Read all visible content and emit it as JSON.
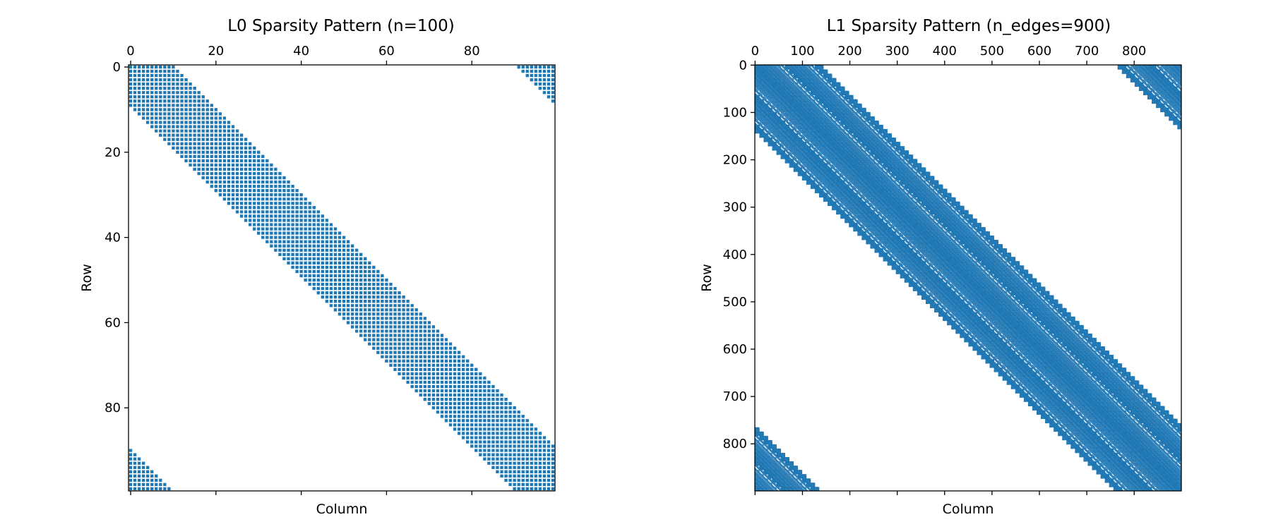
{
  "chart_data": [
    {
      "type": "spy",
      "title": "L0 Sparsity Pattern (n=100)",
      "xlabel": "Column",
      "ylabel": "Row",
      "matrix_size": 100,
      "xlim": [
        -0.5,
        99.5
      ],
      "ylim": [
        99.5,
        -0.5
      ],
      "xticks": [
        0,
        20,
        40,
        60,
        80
      ],
      "yticks": [
        0,
        20,
        40,
        60,
        80
      ],
      "xtick_labels": [
        "0",
        "20",
        "40",
        "60",
        "80"
      ],
      "ytick_labels": [
        "0",
        "20",
        "40",
        "60",
        "80"
      ],
      "x_axis_position": "top",
      "grid": false,
      "color": "#1f77b4",
      "pattern": {
        "structure": "circulant band",
        "offsets": [
          -9,
          -8,
          -7,
          -6,
          -5,
          -4,
          -3,
          -2,
          -1,
          0,
          1,
          2,
          3,
          4,
          5,
          6,
          7,
          8,
          9,
          10
        ],
        "wraparound": true
      }
    },
    {
      "type": "spy",
      "title": "L1 Sparsity Pattern (n_edges=900)",
      "xlabel": "Column",
      "ylabel": "Row",
      "matrix_size": 900,
      "xlim": [
        -0.5,
        899.5
      ],
      "ylim": [
        899.5,
        -0.5
      ],
      "xticks": [
        0,
        100,
        200,
        300,
        400,
        500,
        600,
        700,
        800
      ],
      "yticks": [
        0,
        100,
        200,
        300,
        400,
        500,
        600,
        700,
        800
      ],
      "xtick_labels": [
        "0",
        "100",
        "200",
        "300",
        "400",
        "500",
        "600",
        "700",
        "800"
      ],
      "ytick_labels": [
        "0",
        "100",
        "200",
        "300",
        "400",
        "500",
        "600",
        "700",
        "800"
      ],
      "x_axis_position": "top",
      "grid": false,
      "color": "#1f77b4",
      "pattern": {
        "structure": "blocked circulant band",
        "block_size": 9,
        "band_blocks": 15,
        "wraparound": true
      }
    }
  ]
}
